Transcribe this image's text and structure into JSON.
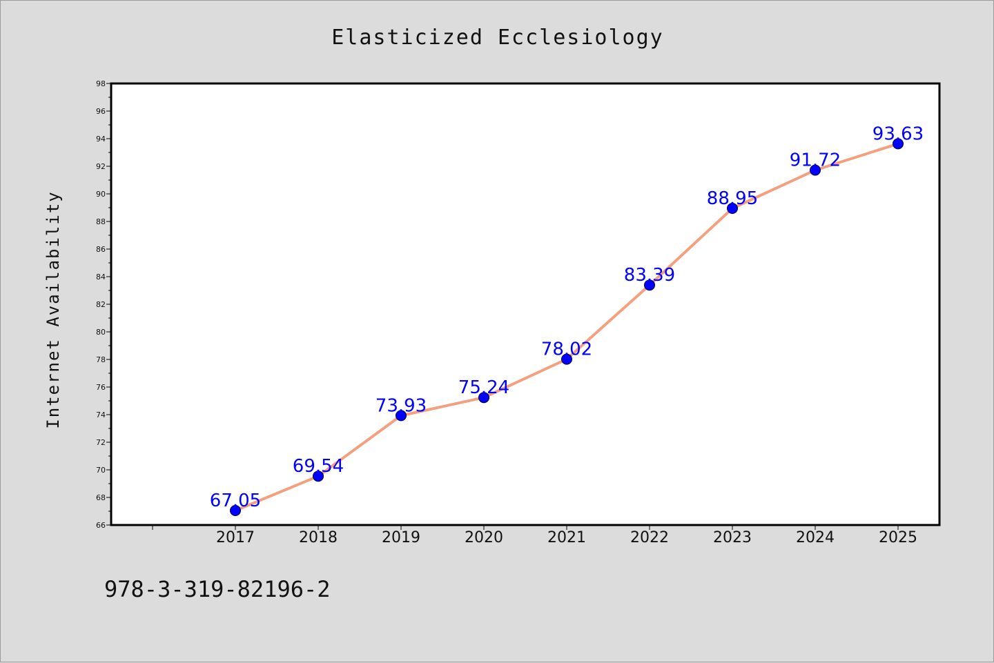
{
  "chart_data": {
    "type": "line",
    "title": "Elasticized Ecclesiology",
    "xlabel": "",
    "ylabel": "Internet Availability",
    "categories": [
      "2017",
      "2018",
      "2019",
      "2020",
      "2021",
      "2022",
      "2023",
      "2024",
      "2025"
    ],
    "values": [
      67.05,
      69.54,
      73.93,
      75.24,
      78.02,
      83.39,
      88.95,
      91.72,
      93.63
    ],
    "data_labels": [
      "67.05",
      "69.54",
      "73.93",
      "75.24",
      "78.02",
      "83.39",
      "88.95",
      "91.72",
      "93.63"
    ],
    "ylim": [
      66,
      98
    ],
    "yticks": [
      "66",
      "68",
      "70",
      "72",
      "74",
      "76",
      "78",
      "80",
      "82",
      "84",
      "86",
      "88",
      "90",
      "92",
      "94",
      "96",
      "98"
    ],
    "grid": false,
    "legend": "none",
    "colors": {
      "line": "#f4a07e",
      "marker": "#0000ff",
      "label": "#0000ff",
      "background": "#dcdcdc",
      "plot_background": "#ffffff"
    }
  },
  "footer": {
    "isbn": "978-3-319-82196-2"
  }
}
